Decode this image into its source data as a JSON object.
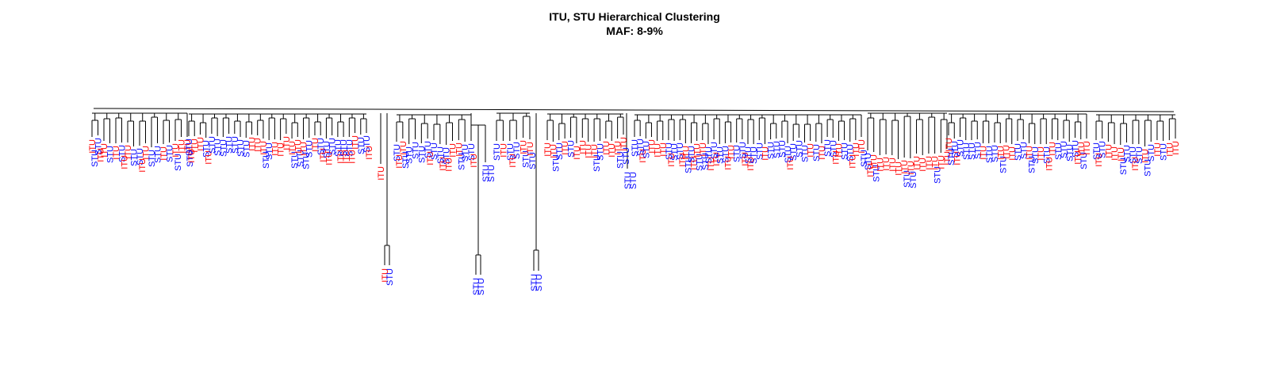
{
  "title": "ITU, STU Hierarchical Clustering",
  "subtitle": "MAF: 8-9%",
  "colors": {
    "ITU": "#ff0000",
    "STU": "#0000ff",
    "line": "#000000"
  },
  "chart_data": {
    "type": "dendrogram",
    "title": "ITU, STU Hierarchical Clustering",
    "subtitle": "MAF: 8-9%",
    "leaf_label_values": [
      "ITU",
      "STU"
    ],
    "leaf_label_colors": {
      "ITU": "#ff0000",
      "STU": "#0000ff"
    },
    "approx_leaf_count": 230,
    "outlier_clusters": [
      {
        "leaves": [
          "ITU",
          "ITU",
          "STU"
        ]
      },
      {
        "leaves": [
          "STU",
          "STU"
        ]
      },
      {
        "leaves": [
          "STU",
          "STU"
        ]
      },
      {
        "leaves": [
          "STU"
        ]
      }
    ],
    "dense_cluster_majority": "ITU"
  }
}
